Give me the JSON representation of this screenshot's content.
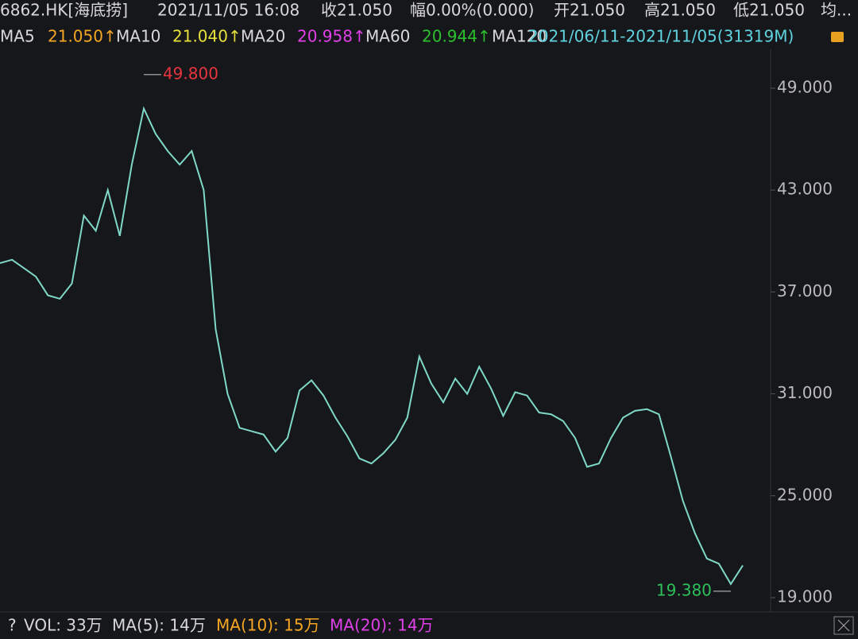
{
  "header": {
    "symbol": "6862.HK[海底捞]",
    "datetime": "2021/11/05 16:08",
    "close": "收21.050",
    "change": "幅0.00%(0.000)",
    "open": "开21.050",
    "high": "高21.050",
    "low": "低21.050",
    "avg": "均..."
  },
  "indicators": [
    {
      "name": "MA5",
      "value": "21.050↑",
      "color": "#f5a623"
    },
    {
      "name": "MA10",
      "value": "21.040↑",
      "color": "#e8e03a"
    },
    {
      "name": "MA20",
      "value": "20.958↑",
      "color": "#e040e8"
    },
    {
      "name": "MA60",
      "value": "20.944↑",
      "color": "#2cc02c"
    },
    {
      "name": "MA120",
      "value": "2021/06/11-2021/11/05(31319M)",
      "color": "#5fd3e0"
    }
  ],
  "volume": {
    "help": "?",
    "vol": "VOL: 33万",
    "ma5": "MA(5): 14万",
    "ma10": "MA(10): 15万",
    "ma20": "MA(20): 14万"
  },
  "chart_data": {
    "type": "line",
    "color": "#7fd8c8",
    "values": [
      38.7,
      38.9,
      38.4,
      37.9,
      36.8,
      36.6,
      37.5,
      41.5,
      40.6,
      43.0,
      40.3,
      44.5,
      47.8,
      46.3,
      45.3,
      44.5,
      45.3,
      43.0,
      34.8,
      31.0,
      29.0,
      28.8,
      28.6,
      27.6,
      28.4,
      31.2,
      31.8,
      30.9,
      29.6,
      28.5,
      27.2,
      26.9,
      27.5,
      28.3,
      29.6,
      33.2,
      31.6,
      30.5,
      31.9,
      31.0,
      32.6,
      31.3,
      29.7,
      31.1,
      30.9,
      29.9,
      29.8,
      29.4,
      28.4,
      26.7,
      26.9,
      28.4,
      29.6,
      30.0,
      30.1,
      29.8,
      27.3,
      24.7,
      22.8,
      21.3,
      21.0,
      19.8,
      20.9
    ],
    "ylim": [
      18.25,
      51.15
    ],
    "yticks": [
      {
        "value": 19,
        "label": "19.000"
      },
      {
        "value": 25,
        "label": "25.000"
      },
      {
        "value": 31,
        "label": "31.000"
      },
      {
        "value": 37,
        "label": "37.000"
      },
      {
        "value": 43,
        "label": "43.000"
      },
      {
        "value": 49,
        "label": "49.000"
      }
    ],
    "annotations": [
      {
        "value": 49.8,
        "label": "49.800",
        "color": "#e8343c"
      },
      {
        "value": 19.38,
        "label": "19.380",
        "color": "#2ec05a"
      }
    ]
  }
}
